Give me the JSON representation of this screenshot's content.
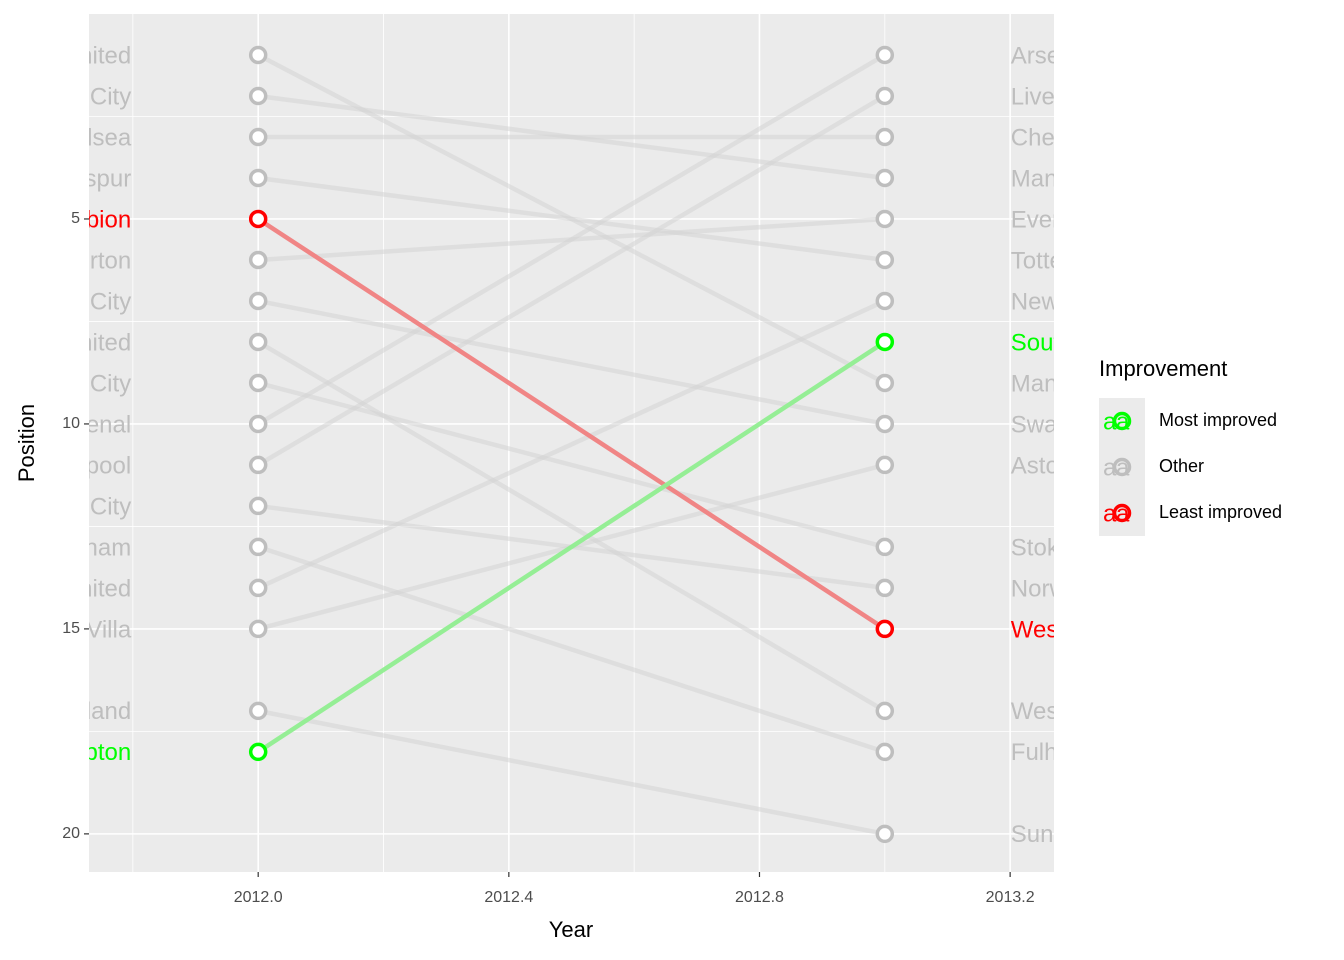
{
  "chart_data": {
    "type": "slope",
    "x_label": "Year",
    "y_label": "Position",
    "x": [
      2012,
      2013
    ],
    "xlim": [
      2011.73,
      2013.27
    ],
    "xticks": [
      {
        "value": 2012.0,
        "label": "2012.0"
      },
      {
        "value": 2012.4,
        "label": "2012.4"
      },
      {
        "value": 2012.8,
        "label": "2012.8"
      },
      {
        "value": 2013.2,
        "label": "2013.2"
      }
    ],
    "ylim": [
      20.93,
      0
    ],
    "yticks": [
      5,
      10,
      15,
      20
    ],
    "grid": true,
    "legend_title": "Improvement",
    "legend_position": "right",
    "key_glyph": "a",
    "groups": [
      {
        "name": "Most improved",
        "color": "#00ff00",
        "line_color": "#90ee90"
      },
      {
        "name": "Other",
        "color": "#bebebe",
        "line_color": "#d3d3d3"
      },
      {
        "name": "Least improved",
        "color": "#ff0000",
        "line_color": "#f08080"
      }
    ],
    "teams": [
      {
        "name": "Manchester United",
        "group": "Other",
        "values": [
          1,
          9
        ]
      },
      {
        "name": "Manchester City",
        "group": "Other",
        "values": [
          2,
          4
        ]
      },
      {
        "name": "Chelsea",
        "group": "Other",
        "values": [
          3,
          3
        ]
      },
      {
        "name": "Tottenham Hotspur",
        "group": "Other",
        "values": [
          4,
          6
        ]
      },
      {
        "name": "West Bromwich Albion",
        "group": "Least improved",
        "values": [
          5,
          15
        ]
      },
      {
        "name": "Everton",
        "group": "Other",
        "values": [
          6,
          5
        ]
      },
      {
        "name": "Swansea City",
        "group": "Other",
        "values": [
          7,
          10
        ]
      },
      {
        "name": "West Ham United",
        "group": "Other",
        "values": [
          8,
          17
        ]
      },
      {
        "name": "Stoke City",
        "group": "Other",
        "values": [
          9,
          13
        ]
      },
      {
        "name": "Arsenal",
        "group": "Other",
        "values": [
          10,
          1
        ]
      },
      {
        "name": "Liverpool",
        "group": "Other",
        "values": [
          11,
          2
        ]
      },
      {
        "name": "Norwich City",
        "group": "Other",
        "values": [
          12,
          14
        ]
      },
      {
        "name": "Fulham",
        "group": "Other",
        "values": [
          13,
          18
        ]
      },
      {
        "name": "Newcastle United",
        "group": "Other",
        "values": [
          14,
          7
        ]
      },
      {
        "name": "Aston Villa",
        "group": "Other",
        "values": [
          15,
          11
        ]
      },
      {
        "name": "Sunderland",
        "group": "Other",
        "values": [
          17,
          20
        ]
      },
      {
        "name": "Southampton",
        "group": "Most improved",
        "values": [
          18,
          8
        ]
      }
    ]
  }
}
